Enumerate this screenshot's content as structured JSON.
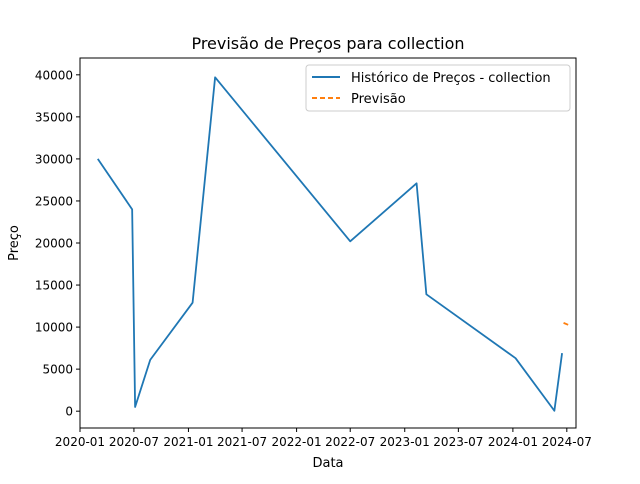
{
  "chart_data": {
    "type": "line",
    "title": "Previsão de Preços para collection",
    "xlabel": "Data",
    "ylabel": "Preço",
    "xlim": [
      "2020-01-01",
      "2024-08-01"
    ],
    "ylim": [
      -2000,
      42000
    ],
    "x_ticks": [
      "2020-01",
      "2020-07",
      "2021-01",
      "2021-07",
      "2022-01",
      "2022-07",
      "2023-01",
      "2023-07",
      "2024-01",
      "2024-07"
    ],
    "y_ticks": [
      0,
      5000,
      10000,
      15000,
      20000,
      25000,
      30000,
      35000,
      40000
    ],
    "grid": false,
    "legend": {
      "position": "top-right"
    },
    "series": [
      {
        "name": "Histórico de Preços - collection",
        "color": "#1f77b4",
        "style": "solid",
        "points": [
          {
            "x": "2020-03-01",
            "y": 30000
          },
          {
            "x": "2020-06-25",
            "y": 24000
          },
          {
            "x": "2020-07-05",
            "y": 500
          },
          {
            "x": "2020-08-25",
            "y": 6100
          },
          {
            "x": "2021-01-15",
            "y": 12900
          },
          {
            "x": "2021-04-01",
            "y": 39700
          },
          {
            "x": "2022-07-01",
            "y": 20200
          },
          {
            "x": "2023-02-10",
            "y": 27100
          },
          {
            "x": "2023-03-15",
            "y": 13900
          },
          {
            "x": "2024-01-10",
            "y": 6300
          },
          {
            "x": "2024-05-20",
            "y": 50
          },
          {
            "x": "2024-06-15",
            "y": 6900
          }
        ]
      },
      {
        "name": "Previsão",
        "color": "#ff7f0e",
        "style": "dashed",
        "points": [
          {
            "x": "2024-06-20",
            "y": 10500
          },
          {
            "x": "2024-07-10",
            "y": 10200
          }
        ]
      }
    ]
  }
}
